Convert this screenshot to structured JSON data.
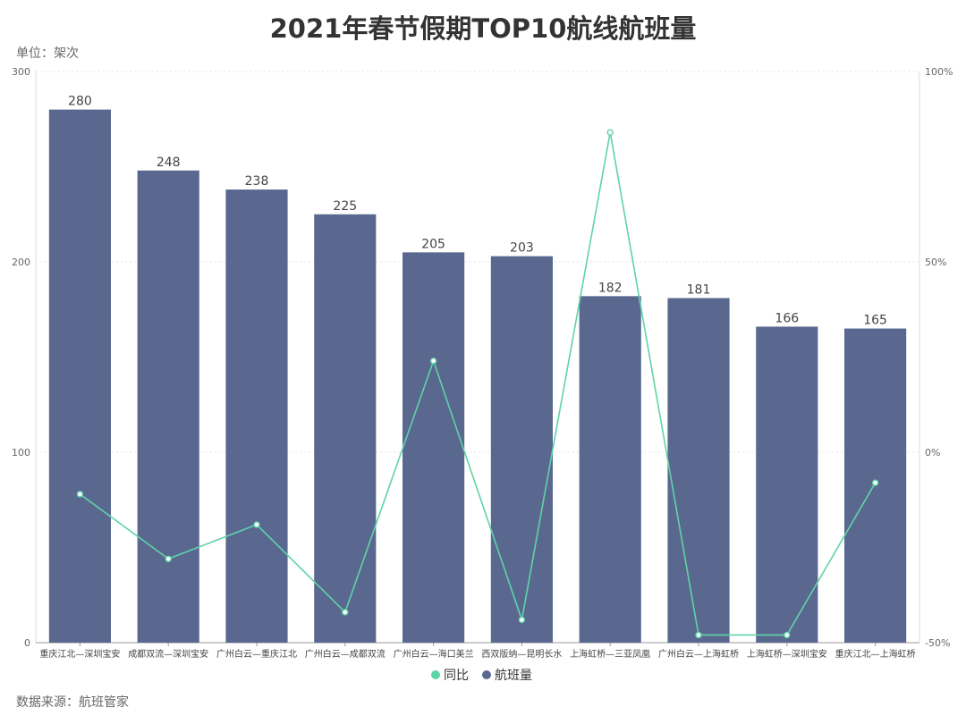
{
  "chart_data": {
    "type": "bar",
    "title": "2021年春节假期TOP10航线航班量",
    "unit_label": "单位：架次",
    "source": "数据来源：航班管家",
    "categories": [
      "重庆江北—深圳宝安",
      "成都双流—深圳宝安",
      "广州白云—重庆江北",
      "广州白云—成都双流",
      "广州白云—海口美兰",
      "西双版纳—昆明长水",
      "上海虹桥—三亚凤凰",
      "广州白云—上海虹桥",
      "上海虹桥—深圳宝安",
      "重庆江北—上海虹桥"
    ],
    "series": [
      {
        "name": "航班量",
        "type": "bar",
        "axis": "left",
        "color": "#5a6890",
        "values": [
          280,
          248,
          238,
          225,
          205,
          203,
          182,
          181,
          166,
          165
        ]
      },
      {
        "name": "同比",
        "type": "line",
        "axis": "right",
        "color": "#5fd3a8",
        "values": [
          -11,
          -28,
          -19,
          -42,
          24,
          -44,
          84,
          -48,
          -48,
          -8
        ]
      }
    ],
    "y_left": {
      "min": 0,
      "max": 300,
      "ticks": [
        "0",
        "100",
        "200",
        "300"
      ]
    },
    "y_right": {
      "min": -50,
      "max": 100,
      "ticks": [
        "-50%",
        "0%",
        "50%",
        "100%"
      ]
    },
    "grid": true,
    "legend_position": "bottom-center"
  }
}
